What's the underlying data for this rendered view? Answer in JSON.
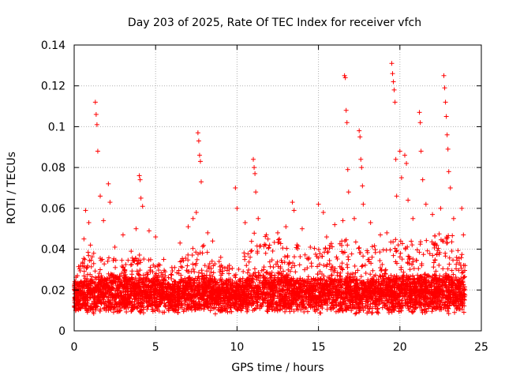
{
  "chart_data": {
    "type": "scatter",
    "title": "Day 203 of 2025, Rate Of TEC Index for receiver vfch",
    "xlabel": "GPS time / hours",
    "ylabel": "ROTI / TECUs",
    "xlim": [
      0,
      25
    ],
    "ylim": [
      0,
      0.14
    ],
    "xticks": [
      0,
      5,
      10,
      15,
      20,
      25
    ],
    "xtick_labels": [
      "0",
      "5",
      "10",
      "15",
      "20",
      "25"
    ],
    "yticks": [
      0,
      0.02,
      0.04,
      0.06,
      0.08,
      0.1,
      0.12,
      0.14
    ],
    "ytick_labels": [
      "0",
      "0.02",
      "0.04",
      "0.06",
      "0.08",
      "0.1",
      "0.12",
      "0.14"
    ],
    "grid": true,
    "marker": "+",
    "color": "#ff0000",
    "series": [
      {
        "name": "ROTI",
        "points": [
          [
            0.1,
            0.012
          ],
          [
            0.2,
            0.027
          ],
          [
            0.3,
            0.018
          ],
          [
            0.5,
            0.022
          ],
          [
            0.6,
            0.045
          ],
          [
            0.7,
            0.059
          ],
          [
            0.8,
            0.031
          ],
          [
            0.9,
            0.053
          ],
          [
            1.0,
            0.042
          ],
          [
            1.2,
            0.038
          ],
          [
            1.3,
            0.112
          ],
          [
            1.35,
            0.106
          ],
          [
            1.4,
            0.101
          ],
          [
            1.45,
            0.088
          ],
          [
            1.6,
            0.066
          ],
          [
            1.8,
            0.054
          ],
          [
            2.1,
            0.072
          ],
          [
            2.2,
            0.063
          ],
          [
            2.5,
            0.041
          ],
          [
            3.0,
            0.047
          ],
          [
            3.5,
            0.039
          ],
          [
            3.8,
            0.05
          ],
          [
            4.0,
            0.076
          ],
          [
            4.05,
            0.074
          ],
          [
            4.1,
            0.065
          ],
          [
            4.2,
            0.061
          ],
          [
            4.6,
            0.049
          ],
          [
            5.0,
            0.046
          ],
          [
            5.5,
            0.035
          ],
          [
            6.0,
            0.031
          ],
          [
            6.5,
            0.043
          ],
          [
            7.0,
            0.051
          ],
          [
            7.3,
            0.055
          ],
          [
            7.5,
            0.058
          ],
          [
            7.6,
            0.097
          ],
          [
            7.65,
            0.093
          ],
          [
            7.7,
            0.086
          ],
          [
            7.75,
            0.083
          ],
          [
            7.8,
            0.073
          ],
          [
            8.2,
            0.048
          ],
          [
            8.5,
            0.044
          ],
          [
            9.0,
            0.036
          ],
          [
            9.5,
            0.028
          ],
          [
            9.9,
            0.07
          ],
          [
            10.0,
            0.06
          ],
          [
            10.5,
            0.053
          ],
          [
            11.0,
            0.084
          ],
          [
            11.05,
            0.08
          ],
          [
            11.1,
            0.077
          ],
          [
            11.15,
            0.068
          ],
          [
            11.3,
            0.055
          ],
          [
            11.8,
            0.047
          ],
          [
            12.0,
            0.042
          ],
          [
            12.5,
            0.048
          ],
          [
            13.0,
            0.051
          ],
          [
            13.4,
            0.063
          ],
          [
            13.5,
            0.059
          ],
          [
            14.0,
            0.05
          ],
          [
            14.5,
            0.041
          ],
          [
            15.0,
            0.062
          ],
          [
            15.3,
            0.058
          ],
          [
            15.5,
            0.046
          ],
          [
            16.0,
            0.052
          ],
          [
            16.5,
            0.054
          ],
          [
            16.6,
            0.125
          ],
          [
            16.65,
            0.124
          ],
          [
            16.7,
            0.108
          ],
          [
            16.75,
            0.102
          ],
          [
            16.8,
            0.079
          ],
          [
            16.85,
            0.068
          ],
          [
            17.2,
            0.055
          ],
          [
            17.5,
            0.098
          ],
          [
            17.55,
            0.095
          ],
          [
            17.6,
            0.084
          ],
          [
            17.65,
            0.08
          ],
          [
            17.7,
            0.071
          ],
          [
            17.75,
            0.062
          ],
          [
            18.2,
            0.053
          ],
          [
            18.8,
            0.047
          ],
          [
            19.2,
            0.048
          ],
          [
            19.5,
            0.131
          ],
          [
            19.55,
            0.126
          ],
          [
            19.6,
            0.122
          ],
          [
            19.65,
            0.118
          ],
          [
            19.7,
            0.112
          ],
          [
            19.75,
            0.084
          ],
          [
            19.8,
            0.066
          ],
          [
            20.0,
            0.088
          ],
          [
            20.1,
            0.075
          ],
          [
            20.3,
            0.086
          ],
          [
            20.4,
            0.082
          ],
          [
            20.5,
            0.064
          ],
          [
            20.8,
            0.055
          ],
          [
            21.2,
            0.107
          ],
          [
            21.25,
            0.102
          ],
          [
            21.3,
            0.088
          ],
          [
            21.4,
            0.074
          ],
          [
            21.6,
            0.062
          ],
          [
            22.0,
            0.057
          ],
          [
            22.5,
            0.06
          ],
          [
            22.7,
            0.125
          ],
          [
            22.75,
            0.119
          ],
          [
            22.8,
            0.112
          ],
          [
            22.85,
            0.105
          ],
          [
            22.9,
            0.096
          ],
          [
            22.95,
            0.089
          ],
          [
            23.0,
            0.078
          ],
          [
            23.1,
            0.07
          ],
          [
            23.3,
            0.055
          ],
          [
            23.8,
            0.06
          ],
          [
            23.9,
            0.047
          ],
          [
            24.0,
            0.032
          ]
        ],
        "background_band": {
          "description": "dense cloud of points across the full day",
          "x_range": [
            0,
            24
          ],
          "median_hourly": [
            0.015,
            0.016,
            0.017,
            0.017,
            0.017,
            0.016,
            0.015,
            0.016,
            0.017,
            0.016,
            0.015,
            0.018,
            0.018,
            0.017,
            0.016,
            0.016,
            0.017,
            0.017,
            0.016,
            0.017,
            0.017,
            0.017,
            0.018,
            0.017,
            0.015
          ],
          "upper_envelope_hourly": [
            0.03,
            0.04,
            0.036,
            0.035,
            0.038,
            0.034,
            0.03,
            0.04,
            0.042,
            0.036,
            0.03,
            0.05,
            0.045,
            0.045,
            0.042,
            0.044,
            0.046,
            0.045,
            0.04,
            0.045,
            0.045,
            0.044,
            0.046,
            0.05,
            0.035
          ],
          "lower_envelope": 0.006
        }
      }
    ]
  }
}
